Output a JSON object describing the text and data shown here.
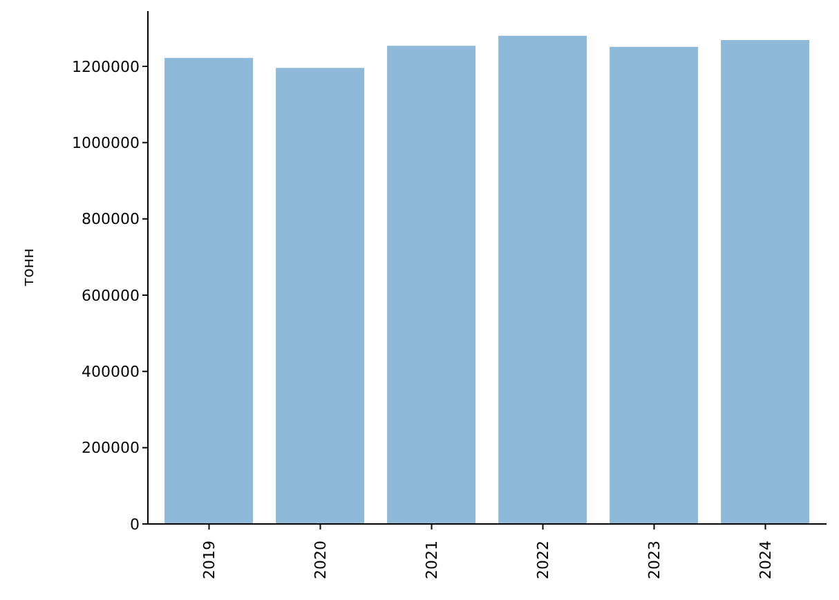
{
  "chart_data": {
    "type": "bar",
    "ylabel": "тонн",
    "categories": [
      "2019",
      "2020",
      "2021",
      "2022",
      "2023",
      "2024"
    ],
    "values": [
      1222000,
      1196000,
      1254000,
      1280000,
      1251000,
      1269000
    ],
    "color": "#8fb9d9",
    "ylim": [
      0,
      1345000
    ],
    "yticks": [
      0,
      200000,
      400000,
      600000,
      800000,
      1000000,
      1200000
    ],
    "grid": false,
    "legend": false
  }
}
